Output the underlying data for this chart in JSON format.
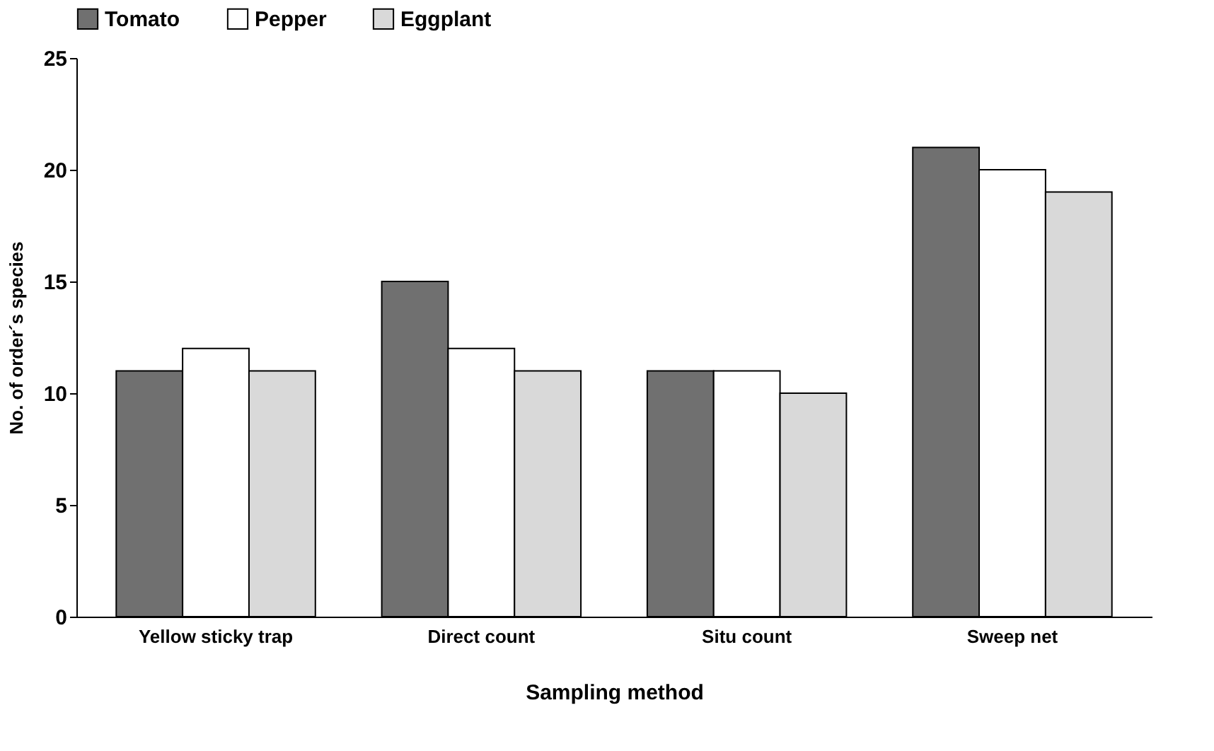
{
  "chart_data": {
    "type": "bar",
    "xlabel": "Sampling method",
    "ylabel": "No. of order´s species",
    "categories": [
      "Yellow sticky trap",
      "Direct count",
      "Situ count",
      "Sweep net"
    ],
    "series": [
      {
        "name": "Tomato",
        "color": "#707070",
        "values": [
          11,
          15,
          11,
          21
        ]
      },
      {
        "name": "Pepper",
        "color": "#ffffff",
        "values": [
          12,
          12,
          11,
          20
        ]
      },
      {
        "name": "Eggplant",
        "color": "#d9d9d9",
        "values": [
          11,
          11,
          10,
          19
        ]
      }
    ],
    "ylim": [
      0,
      25
    ],
    "yticks": [
      0,
      5,
      10,
      15,
      20,
      25
    ],
    "grid": false,
    "legend": "top"
  }
}
